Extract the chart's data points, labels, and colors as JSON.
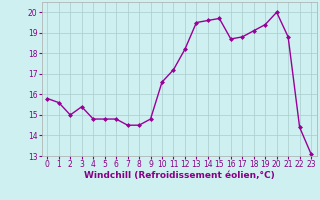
{
  "x": [
    0,
    1,
    2,
    3,
    4,
    5,
    6,
    7,
    8,
    9,
    10,
    11,
    12,
    13,
    14,
    15,
    16,
    17,
    18,
    19,
    20,
    21,
    22,
    23
  ],
  "y": [
    15.8,
    15.6,
    15.0,
    15.4,
    14.8,
    14.8,
    14.8,
    14.5,
    14.5,
    14.8,
    16.6,
    17.2,
    18.2,
    19.5,
    19.6,
    19.7,
    18.7,
    18.8,
    19.1,
    19.4,
    20.0,
    18.8,
    14.4,
    13.1
  ],
  "line_color": "#990099",
  "marker": "D",
  "marker_size": 2,
  "bg_color": "#cff0f0",
  "grid_color": "#aacccc",
  "xlabel": "Windchill (Refroidissement éolien,°C)",
  "xlim": [
    -0.5,
    23.5
  ],
  "ylim": [
    13,
    20.5
  ],
  "yticks": [
    13,
    14,
    15,
    16,
    17,
    18,
    19,
    20
  ],
  "xticks": [
    0,
    1,
    2,
    3,
    4,
    5,
    6,
    7,
    8,
    9,
    10,
    11,
    12,
    13,
    14,
    15,
    16,
    17,
    18,
    19,
    20,
    21,
    22,
    23
  ],
  "tick_label_size": 5.5,
  "xlabel_size": 6.5,
  "line_width": 1.0,
  "tick_color": "#880088",
  "label_color": "#880088"
}
